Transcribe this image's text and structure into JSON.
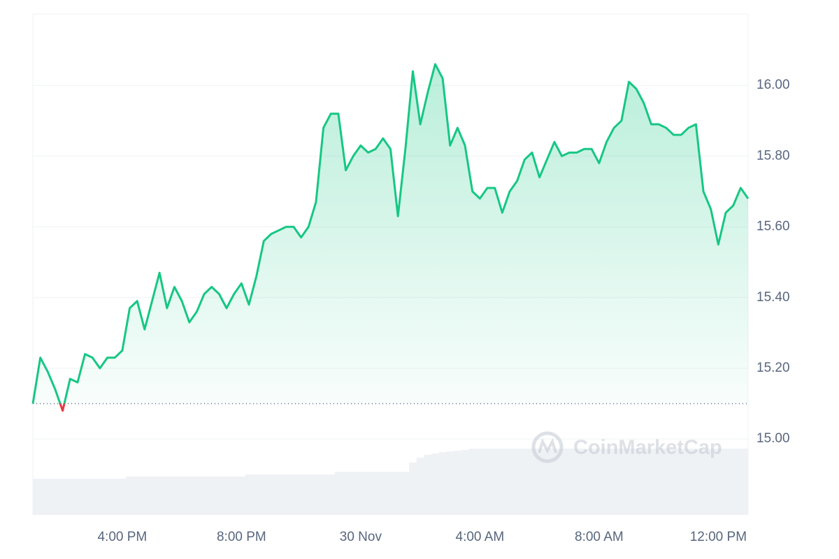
{
  "chart_data": {
    "type": "line",
    "x": [
      13,
      13.25,
      13.5,
      13.75,
      14,
      14.25,
      14.5,
      14.75,
      15,
      15.25,
      15.5,
      15.75,
      16,
      16.25,
      16.5,
      16.75,
      17,
      17.25,
      17.5,
      17.75,
      18,
      18.25,
      18.5,
      18.75,
      19,
      19.25,
      19.5,
      19.75,
      20,
      20.25,
      20.5,
      20.75,
      21,
      21.25,
      21.5,
      21.75,
      22,
      22.25,
      22.5,
      22.75,
      23,
      23.25,
      23.5,
      23.75,
      24,
      24.25,
      24.5,
      24.75,
      25,
      25.25,
      25.5,
      25.75,
      26,
      26.25,
      26.5,
      26.75,
      27,
      27.25,
      27.5,
      27.75,
      28,
      28.25,
      28.5,
      28.75,
      29,
      29.25,
      29.5,
      29.75,
      30,
      30.25,
      30.5,
      30.75,
      31,
      31.25,
      31.5,
      31.75,
      32,
      32.25,
      32.5,
      32.75,
      33,
      33.25,
      33.5,
      33.75,
      34,
      34.25,
      34.5,
      34.75,
      35,
      35.25,
      35.5,
      35.75,
      36,
      36.25,
      36.5,
      36.75,
      37
    ],
    "series": [
      {
        "color": "#16c784",
        "below_color": "#ea3943",
        "values": [
          15.1,
          15.23,
          15.19,
          15.14,
          15.08,
          15.17,
          15.16,
          15.24,
          15.23,
          15.2,
          15.23,
          15.23,
          15.25,
          15.37,
          15.39,
          15.31,
          15.39,
          15.47,
          15.37,
          15.43,
          15.39,
          15.33,
          15.36,
          15.41,
          15.43,
          15.41,
          15.37,
          15.41,
          15.44,
          15.38,
          15.46,
          15.56,
          15.58,
          15.59,
          15.6,
          15.6,
          15.57,
          15.6,
          15.67,
          15.88,
          15.92,
          15.92,
          15.76,
          15.8,
          15.83,
          15.81,
          15.82,
          15.85,
          15.82,
          15.63,
          15.82,
          16.04,
          15.89,
          15.98,
          16.06,
          16.02,
          15.83,
          15.88,
          15.83,
          15.7,
          15.68,
          15.71,
          15.71,
          15.64,
          15.7,
          15.73,
          15.79,
          15.81,
          15.74,
          15.79,
          15.84,
          15.8,
          15.81,
          15.81,
          15.82,
          15.82,
          15.78,
          15.84,
          15.88,
          15.9,
          16.01,
          15.99,
          15.95,
          15.89,
          15.89,
          15.88,
          15.86,
          15.86,
          15.88,
          15.89,
          15.7,
          15.65,
          15.55,
          15.64,
          15.66,
          15.71,
          15.68
        ]
      }
    ],
    "baseline": 15.1,
    "volume": {
      "color": "#eff2f5",
      "ylim": [
        0,
        200
      ],
      "values": [
        52,
        52,
        52,
        52,
        52,
        52,
        52,
        52,
        52,
        52,
        52,
        52,
        52,
        55,
        55,
        55,
        55,
        55,
        55,
        55,
        55,
        55,
        55,
        55,
        55,
        55,
        55,
        55,
        55,
        58,
        58,
        58,
        58,
        58,
        58,
        58,
        58,
        58,
        58,
        58,
        58,
        62,
        62,
        62,
        62,
        62,
        62,
        62,
        62,
        62,
        62,
        75,
        82,
        86,
        88,
        90,
        91,
        92,
        93,
        95,
        95,
        95,
        95,
        95,
        95,
        95,
        95,
        95,
        95,
        95,
        95,
        95,
        95,
        95,
        95,
        95,
        95,
        95,
        95,
        95,
        95,
        95,
        95,
        95,
        95,
        95,
        95,
        95,
        95,
        95,
        95,
        95,
        95,
        95,
        95,
        95,
        95
      ]
    },
    "xlim": [
      13,
      37
    ],
    "xticks": [
      {
        "value": 16,
        "label": "4:00 PM"
      },
      {
        "value": 20,
        "label": "8:00 PM"
      },
      {
        "value": 24,
        "label": "30 Nov"
      },
      {
        "value": 28,
        "label": "4:00 AM"
      },
      {
        "value": 32,
        "label": "8:00 AM"
      },
      {
        "value": 36,
        "label": "12:00 PM"
      }
    ],
    "ylim": [
      14.785,
      16.202
    ],
    "yticks": [
      {
        "value": 15,
        "label": "15.00"
      },
      {
        "value": 15.2,
        "label": "15.20"
      },
      {
        "value": 15.4,
        "label": "15.40"
      },
      {
        "value": 15.6,
        "label": "15.60"
      },
      {
        "value": 15.8,
        "label": "15.80"
      },
      {
        "value": 16,
        "label": "16.00"
      }
    ],
    "grid": true,
    "watermark": "CoinMarketCap"
  }
}
